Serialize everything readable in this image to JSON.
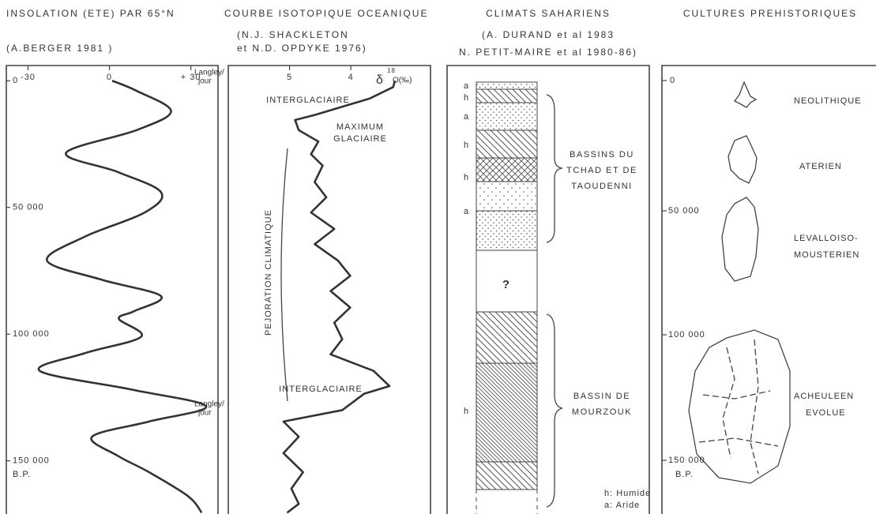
{
  "chart_data": [
    {
      "type": "line",
      "title": "INSOLATION (ETE) PAR 65°N",
      "subtitle": [
        "(A.BERGER 1981 )"
      ],
      "y_label": [
        "Langley/",
        "jour"
      ],
      "x_label": "B.P.",
      "x": [
        0,
        4000,
        12000,
        19500,
        28500,
        36000,
        44000,
        52000,
        61500,
        71000,
        78500,
        85000,
        91000,
        94000,
        101000,
        107500,
        114500,
        122000,
        128500,
        134500,
        140500,
        148000,
        154500,
        164000,
        170500
      ],
      "values": [
        1,
        10,
        22.7,
        10,
        -16,
        3,
        19,
        13,
        -9,
        -23,
        -3,
        19,
        9,
        3.5,
        11.7,
        -9,
        -25.7,
        8.7,
        35.6,
        14.6,
        -6.4,
        3,
        14.6,
        29,
        34
      ],
      "xlim": [
        -6000,
        171000
      ],
      "xticks": [
        0,
        {
          "value": 50000,
          "label": "50 000"
        },
        {
          "value": 100000,
          "label": "100 000"
        },
        {
          "value": 150000,
          "label": "150 000"
        }
      ],
      "ylim": [
        -38,
        40
      ],
      "yticks": [
        -30,
        0,
        {
          "value": 30,
          "label": "+ 30"
        }
      ],
      "annotations": [
        "Langley/",
        "jour"
      ],
      "smooth": true,
      "color": "#333333"
    },
    {
      "type": "line",
      "title": "COURBE ISOTOPIQUE OCEANIQUE",
      "subtitle": [
        "(N.J. SHACKLETON",
        "et N.D. OPDYKE 1976)"
      ],
      "y_label": [
        "δ",
        "18",
        "O(‰)"
      ],
      "x": [
        0,
        2500,
        7000,
        13500,
        15500,
        19500,
        24000,
        29000,
        33500,
        40000,
        46000,
        52000,
        58500,
        64500,
        71000,
        77000,
        83000,
        89500,
        95500,
        102000,
        108000,
        114500,
        120500,
        123500,
        130000,
        134500,
        140500,
        147000,
        154500,
        161000,
        167000,
        170500
      ],
      "values": [
        3.28,
        3.31,
        3.69,
        4.59,
        4.91,
        4.85,
        4.53,
        4.65,
        4.46,
        4.59,
        4.4,
        4.65,
        4.27,
        4.59,
        4.21,
        4.01,
        4.33,
        4.01,
        4.27,
        4.14,
        4.33,
        3.63,
        3.37,
        3.78,
        4.14,
        5.1,
        4.85,
        5.1,
        4.78,
        4.97,
        4.85,
        5.04
      ],
      "xlim": [
        -6000,
        171000
      ],
      "ylim": [
        6,
        2.7
      ],
      "yticks": [
        5,
        4
      ],
      "annotations": [
        "INTERGLACIAIRE",
        "MAXIMUM",
        "GLACIAIRE",
        "INTERGLACIAIRE",
        "PEJORATION CLIMATIQUE"
      ],
      "smooth": false,
      "color": "#333333"
    }
  ],
  "sahara": {
    "title": "CLIMATS SAHARIENS",
    "sources": [
      "(A. DURAND et al 1983",
      "N. PETIT-MAIRE et al 1980-86)"
    ],
    "layer_codes": [
      "a",
      "h",
      "a",
      "h",
      "h",
      "a",
      "h"
    ],
    "unknown": "?",
    "basins": [
      [
        "BASSINS DU",
        "TCHAD ET DE",
        "TAOUDENNI"
      ],
      [
        "BASSIN DE",
        "MOURZOUK"
      ]
    ],
    "legend": [
      "h: Humide",
      "a: Aride"
    ]
  },
  "cultures": {
    "title": "CULTURES PREHISTORIQUES",
    "ticks": [
      "0",
      "50 000",
      "100 000",
      "150 000"
    ],
    "era": "B.P.",
    "names": [
      [
        "NEOLITHIQUE"
      ],
      [
        "ATERIEN"
      ],
      [
        "LEVALLOISO-",
        "MOUSTERIEN"
      ],
      [
        "ACHEULEEN",
        "EVOLUE"
      ]
    ]
  }
}
